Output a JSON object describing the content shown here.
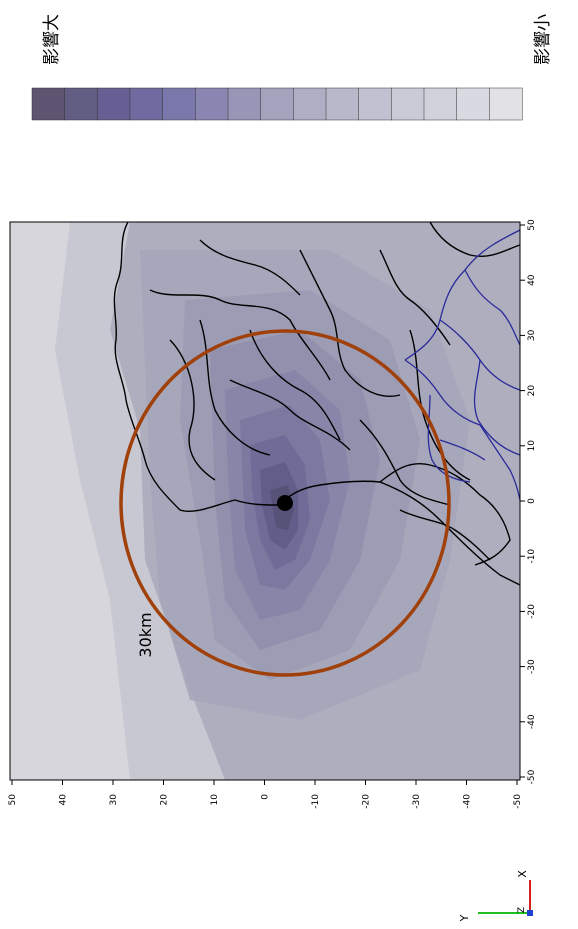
{
  "legend": {
    "high_label": "影響大",
    "low_label": "影響小",
    "colors": [
      "#5e5472",
      "#625d83",
      "#675f93",
      "#6f6aa0",
      "#7a77aa",
      "#8987b2",
      "#9796b6",
      "#a4a3be",
      "#afaec5",
      "#b9b8cb",
      "#c2c1d1",
      "#cac9d6",
      "#d1d1dc",
      "#d9d9e1",
      "#e2e2e6"
    ]
  },
  "map": {
    "distance_label": "30km",
    "ticks_bottom": [
      "-50",
      "-40",
      "-30",
      "-20",
      "-10",
      "0",
      "10",
      "20",
      "30",
      "40",
      "50"
    ],
    "ticks_left": [
      "-50",
      "-40",
      "-30",
      "-20",
      "-10",
      "0",
      "10",
      "20",
      "30",
      "40",
      "50"
    ],
    "circle_color": "#a0400a",
    "border_color_black": "#000000",
    "border_color_blue": "#2a2a9a",
    "colors": {
      "background": "#aeaebf",
      "light": "#c8c8d2",
      "lighter": "#d6d6dc"
    }
  },
  "axes_indicator": {
    "x_label": "X",
    "y_label": "Y",
    "z_label": "Z"
  }
}
